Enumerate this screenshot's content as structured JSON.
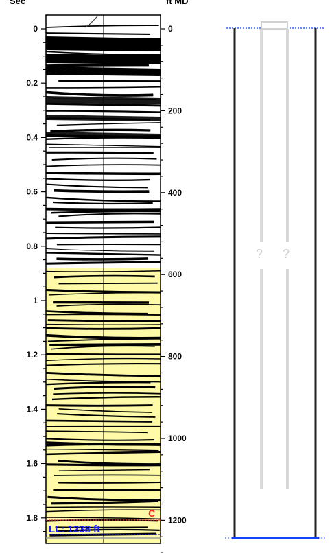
{
  "headers": {
    "left_unit": "Sec",
    "right_unit": "ft MD"
  },
  "time_axis": {
    "unit": "Sec",
    "labels": [
      "0",
      "0.2",
      "0.4",
      "0.6",
      "0.8",
      "1",
      "1.2",
      "1.4",
      "1.6",
      "1.8"
    ],
    "values": [
      0,
      0.2,
      0.4,
      0.6,
      0.8,
      1.0,
      1.2,
      1.4,
      1.6,
      1.8
    ],
    "range": [
      0,
      1.9
    ]
  },
  "depth_axis": {
    "unit": "ft MD",
    "labels": [
      "0",
      "200",
      "400",
      "600",
      "800",
      "1000",
      "1200"
    ],
    "values": [
      0,
      200,
      400,
      600,
      800,
      1000,
      1200
    ],
    "range": [
      0,
      1290
    ]
  },
  "seismic": {
    "highlight_color": "#fffaa8",
    "highlight_from_sec": 0.88,
    "trace_color": "#000000"
  },
  "markers": {
    "c_label": "C",
    "c_color": "#ff2a2a",
    "ll_label": "LL: 1238 ft",
    "ll_color": "#1a1aff"
  },
  "well": {
    "question_marks": [
      "?",
      "?"
    ],
    "casing_color": "#222222",
    "tubing_color": "#d8d8d8",
    "bottom_line_color": "#1144ff"
  }
}
